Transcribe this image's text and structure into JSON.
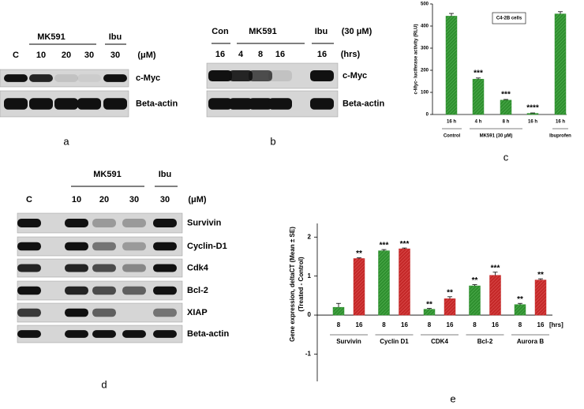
{
  "panel_labels": [
    "a",
    "b",
    "c",
    "d",
    "e"
  ],
  "blots": [
    {
      "groups": [
        "MK591",
        "Ibu"
      ],
      "lanes": [
        "C",
        "10",
        "20",
        "30",
        "30"
      ],
      "unit": "(μM)",
      "rows": [
        "c-Myc",
        "Beta-actin"
      ]
    },
    {
      "groups": [
        "Con",
        "MK591",
        "Ibu"
      ],
      "condition": "(30 μM)",
      "lanes": [
        "16",
        "4",
        "8",
        "16",
        "16"
      ],
      "unit": "(hrs)",
      "rows": [
        "c-Myc",
        "Beta-actin"
      ]
    },
    {
      "groups": [
        "MK591",
        "Ibu"
      ],
      "lanes": [
        "C",
        "10",
        "20",
        "30",
        "30"
      ],
      "unit": "(μM)",
      "rows": [
        "Survivin",
        "Cyclin-D1",
        "Cdk4",
        "Bcl-2",
        "XIAP",
        "Beta-actin"
      ]
    }
  ],
  "chart_data": [
    {
      "type": "bar",
      "ylabel": "c-Myc- luciferase activity (RLU)",
      "legend_text": "C4-2B cells",
      "categories": [
        "16 h",
        "4 h",
        "8 h",
        "16 h",
        "16 h"
      ],
      "groups": [
        "Control",
        "MK591 (30 µM)",
        "Ibuprofen"
      ],
      "values": [
        445,
        160,
        65,
        5,
        455
      ],
      "errors": [
        12,
        5,
        3,
        2,
        10
      ],
      "annotations": [
        null,
        "***",
        "***",
        "****",
        null
      ],
      "color": "#2f8f2f",
      "ylim": [
        0,
        500
      ],
      "yticks": [
        0,
        100,
        200,
        300,
        400,
        500
      ]
    },
    {
      "type": "grouped_bar",
      "ylabel": [
        "Gene expression, deltaCT (Mean ± SE)",
        "(Treated - Control)"
      ],
      "categories": [
        "Survivin",
        "Cyclin D1",
        "CDK4",
        "Bcl-2",
        "Aurora B"
      ],
      "series": [
        {
          "name": "8",
          "color": "#2f8f2f",
          "values": [
            0.2,
            1.65,
            0.15,
            0.75,
            0.27
          ],
          "errors": [
            0.1,
            0.03,
            0.02,
            0.03,
            0.03
          ],
          "annotations": [
            null,
            "***",
            "**",
            "**",
            "**"
          ]
        },
        {
          "name": "16",
          "color": "#c42828",
          "values": [
            1.45,
            1.7,
            0.42,
            1.02,
            0.9
          ],
          "errors": [
            0.02,
            0.02,
            0.05,
            0.08,
            0.03
          ],
          "annotations": [
            "**",
            "***",
            "**",
            "***",
            "**"
          ]
        }
      ],
      "x_unit": "[hrs]",
      "ylim": [
        -1.7,
        2.35
      ],
      "yticks": [
        -1,
        0,
        1,
        2
      ]
    }
  ]
}
